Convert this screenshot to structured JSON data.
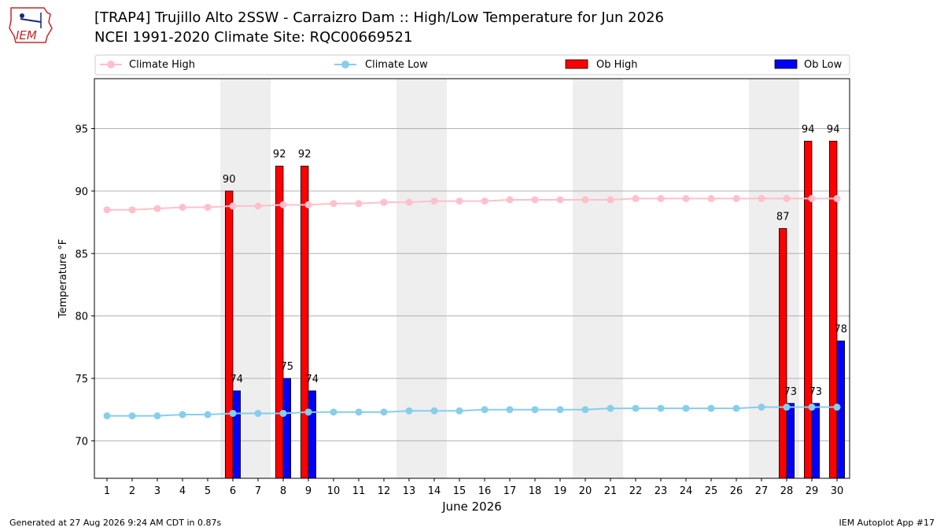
{
  "header": {
    "title_line1": "[TRAP4] Trujillo Alto 2SSW - Carraizro Dam :: High/Low Temperature for Jun 2026",
    "title_line2": "NCEI 1991-2020 Climate Site: RQC00669521",
    "logo_text": "IEM"
  },
  "footer": {
    "generated": "Generated at 27 Aug 2026 9:24 AM CDT in 0.87s",
    "app": "IEM Autoplot App #17"
  },
  "colors": {
    "climate_high": "#ffc0cb",
    "climate_low": "#87ceeb",
    "ob_high": "#ff0000",
    "ob_low": "#0000ff",
    "weekend_band": "#eeeeee",
    "grid": "#b0b0b0"
  },
  "chart_data": {
    "type": "bar",
    "xlabel": "June 2026",
    "ylabel": "Temperature °F",
    "xlim": [
      0.5,
      30.5
    ],
    "ylim": [
      67,
      99
    ],
    "yticks": [
      70,
      75,
      80,
      85,
      90,
      95
    ],
    "x": [
      1,
      2,
      3,
      4,
      5,
      6,
      7,
      8,
      9,
      10,
      11,
      12,
      13,
      14,
      15,
      16,
      17,
      18,
      19,
      20,
      21,
      22,
      23,
      24,
      25,
      26,
      27,
      28,
      29,
      30
    ],
    "legend": {
      "placement": "top",
      "entries": [
        "Climate High",
        "Climate Low",
        "Ob High",
        "Ob Low"
      ]
    },
    "weekend_days": [
      6,
      7,
      13,
      14,
      20,
      21,
      27,
      28
    ],
    "grid": "horizontal",
    "series": [
      {
        "name": "Climate High",
        "kind": "line",
        "values": [
          88.5,
          88.5,
          88.6,
          88.7,
          88.7,
          88.8,
          88.8,
          88.9,
          88.9,
          89.0,
          89.0,
          89.1,
          89.1,
          89.2,
          89.2,
          89.2,
          89.3,
          89.3,
          89.3,
          89.3,
          89.3,
          89.4,
          89.4,
          89.4,
          89.4,
          89.4,
          89.4,
          89.4,
          89.4,
          89.4
        ]
      },
      {
        "name": "Climate Low",
        "kind": "line",
        "values": [
          72.0,
          72.0,
          72.0,
          72.1,
          72.1,
          72.2,
          72.2,
          72.2,
          72.3,
          72.3,
          72.3,
          72.3,
          72.4,
          72.4,
          72.4,
          72.5,
          72.5,
          72.5,
          72.5,
          72.5,
          72.6,
          72.6,
          72.6,
          72.6,
          72.6,
          72.6,
          72.7,
          72.7,
          72.7,
          72.7
        ]
      },
      {
        "name": "Ob High",
        "kind": "bar",
        "points": [
          {
            "x": 6,
            "y": 90,
            "label": "90"
          },
          {
            "x": 8,
            "y": 92,
            "label": "92"
          },
          {
            "x": 9,
            "y": 92,
            "label": "92"
          },
          {
            "x": 28,
            "y": 87,
            "label": "87"
          },
          {
            "x": 29,
            "y": 94,
            "label": "94"
          },
          {
            "x": 30,
            "y": 94,
            "label": "94"
          }
        ]
      },
      {
        "name": "Ob Low",
        "kind": "bar",
        "points": [
          {
            "x": 6,
            "y": 74,
            "label": "74"
          },
          {
            "x": 8,
            "y": 75,
            "label": "75"
          },
          {
            "x": 9,
            "y": 74,
            "label": "74"
          },
          {
            "x": 28,
            "y": 73,
            "label": "73"
          },
          {
            "x": 29,
            "y": 73,
            "label": "73"
          },
          {
            "x": 30,
            "y": 78,
            "label": "78"
          }
        ]
      }
    ]
  }
}
